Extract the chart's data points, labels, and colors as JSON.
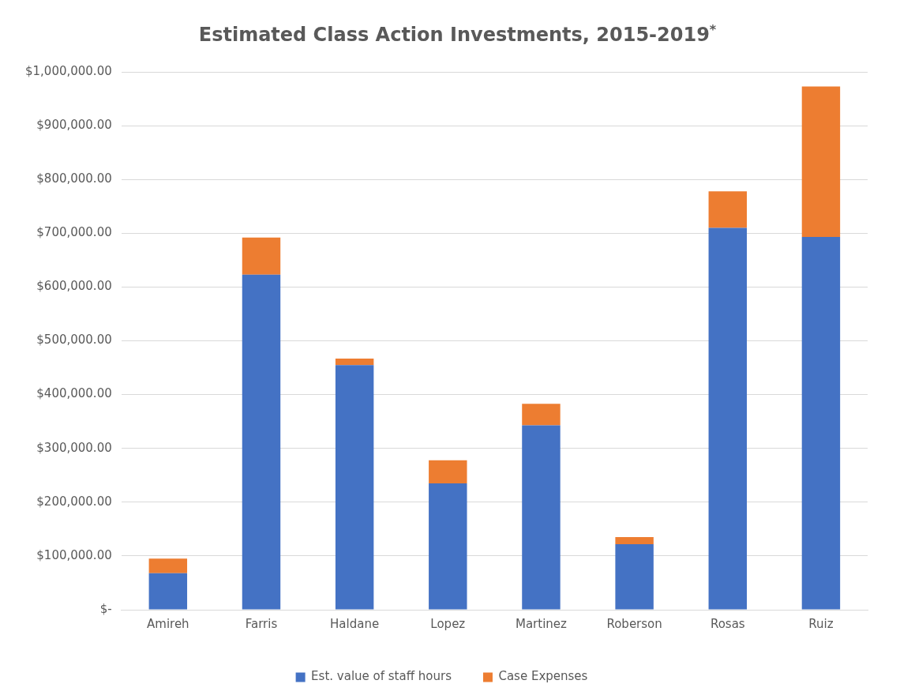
{
  "chart_data": {
    "type": "bar",
    "title": "Estimated Class Action Investments, 2015-2019$^{*}$",
    "categories": [
      "Amireh",
      "Farris",
      "Haldane",
      "Lopez",
      "Martinez",
      "Roberson",
      "Rosas",
      "Ruiz"
    ],
    "stacked": true,
    "series": [
      {
        "name": "Est. value of staff hours",
        "color": "#4472c4",
        "values": [
          68000,
          623000,
          455000,
          235000,
          343000,
          122000,
          710000,
          693000
        ]
      },
      {
        "name": "Case Expenses",
        "color": "#ed7d31",
        "values": [
          27000,
          69000,
          12000,
          43000,
          40000,
          13000,
          68000,
          280000
        ]
      }
    ],
    "ylim": [
      0,
      1000000
    ],
    "yticks": [
      {
        "value": 0,
        "label": "$-"
      },
      {
        "value": 100000,
        "label": "$100,000.00"
      },
      {
        "value": 200000,
        "label": "$200,000.00"
      },
      {
        "value": 300000,
        "label": "$300,000.00"
      },
      {
        "value": 400000,
        "label": "$400,000.00"
      },
      {
        "value": 500000,
        "label": "$500,000.00"
      },
      {
        "value": 600000,
        "label": "$600,000.00"
      },
      {
        "value": 700000,
        "label": "$700,000.00"
      },
      {
        "value": 800000,
        "label": "$800,000.00"
      },
      {
        "value": 900000,
        "label": "$900,000.00"
      },
      {
        "value": 1000000,
        "label": "$1,000,000.00"
      }
    ],
    "grid": "y",
    "legend": "bottom"
  }
}
